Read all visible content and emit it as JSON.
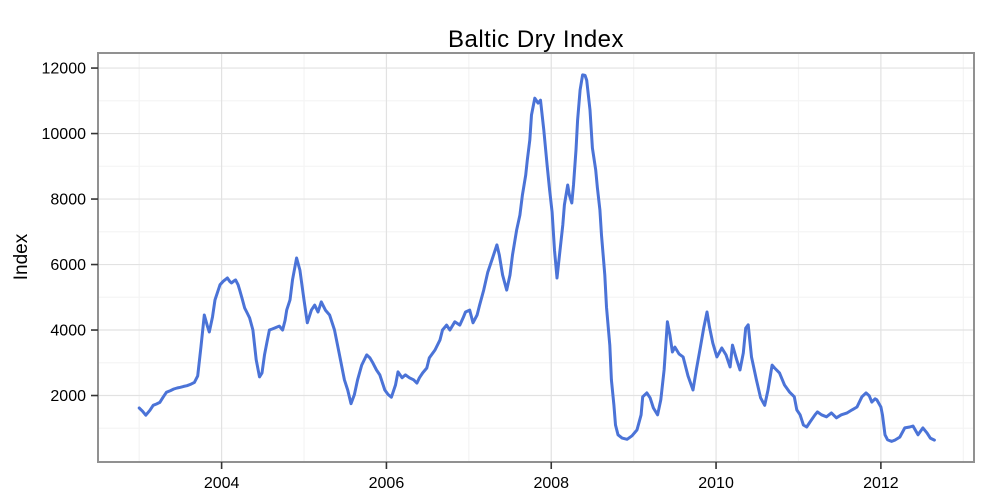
{
  "chart_data": {
    "type": "line",
    "title": "Baltic Dry Index",
    "xlabel": "",
    "ylabel": "Index",
    "legend": "none",
    "grid": true,
    "x_domain": [
      2002.5,
      2013.13
    ],
    "y_domain": [
      -30,
      12460
    ],
    "x_ticks": {
      "major": [
        2004,
        2006,
        2008,
        2010,
        2012
      ],
      "minor": [
        2003,
        2005,
        2007,
        2009,
        2011,
        2013
      ],
      "labels": [
        "2004",
        "2006",
        "2008",
        "2010",
        "2012"
      ]
    },
    "y_ticks": {
      "major": [
        2000,
        4000,
        6000,
        8000,
        10000,
        12000
      ],
      "minor": [
        1000,
        3000,
        5000,
        7000,
        9000,
        11000
      ],
      "labels": [
        "2000",
        "4000",
        "6000",
        "8000",
        "10000",
        "12000"
      ]
    },
    "colors": {
      "line": "#4B73D7",
      "grid_major": "#e2e2e2",
      "grid_minor": "#f4f4f4",
      "border": "#919191",
      "tick": "#333333",
      "text": "#000000",
      "plot_bg": "#ffffff"
    },
    "series": [
      {
        "name": "Baltic Dry Index",
        "color": "#4B73D7",
        "points": [
          [
            2003.0,
            1620
          ],
          [
            2003.04,
            1520
          ],
          [
            2003.08,
            1400
          ],
          [
            2003.13,
            1550
          ],
          [
            2003.17,
            1700
          ],
          [
            2003.21,
            1740
          ],
          [
            2003.25,
            1790
          ],
          [
            2003.29,
            1950
          ],
          [
            2003.33,
            2100
          ],
          [
            2003.38,
            2150
          ],
          [
            2003.42,
            2200
          ],
          [
            2003.46,
            2230
          ],
          [
            2003.5,
            2250
          ],
          [
            2003.54,
            2280
          ],
          [
            2003.58,
            2300
          ],
          [
            2003.63,
            2350
          ],
          [
            2003.67,
            2400
          ],
          [
            2003.71,
            2600
          ],
          [
            2003.75,
            3500
          ],
          [
            2003.79,
            4460
          ],
          [
            2003.83,
            4100
          ],
          [
            2003.85,
            3940
          ],
          [
            2003.89,
            4400
          ],
          [
            2003.92,
            4920
          ],
          [
            2003.98,
            5380
          ],
          [
            2004.02,
            5490
          ],
          [
            2004.04,
            5530
          ],
          [
            2004.07,
            5590
          ],
          [
            2004.1,
            5480
          ],
          [
            2004.12,
            5440
          ],
          [
            2004.15,
            5500
          ],
          [
            2004.17,
            5530
          ],
          [
            2004.2,
            5380
          ],
          [
            2004.22,
            5220
          ],
          [
            2004.25,
            4950
          ],
          [
            2004.28,
            4670
          ],
          [
            2004.31,
            4520
          ],
          [
            2004.34,
            4370
          ],
          [
            2004.38,
            4000
          ],
          [
            2004.42,
            3090
          ],
          [
            2004.46,
            2570
          ],
          [
            2004.49,
            2690
          ],
          [
            2004.52,
            3240
          ],
          [
            2004.55,
            3620
          ],
          [
            2004.58,
            4000
          ],
          [
            2004.61,
            4030
          ],
          [
            2004.64,
            4060
          ],
          [
            2004.67,
            4090
          ],
          [
            2004.7,
            4120
          ],
          [
            2004.74,
            4000
          ],
          [
            2004.77,
            4300
          ],
          [
            2004.79,
            4610
          ],
          [
            2004.83,
            4920
          ],
          [
            2004.86,
            5530
          ],
          [
            2004.91,
            6200
          ],
          [
            2004.95,
            5830
          ],
          [
            2005.0,
            4920
          ],
          [
            2005.04,
            4220
          ],
          [
            2005.09,
            4610
          ],
          [
            2005.13,
            4760
          ],
          [
            2005.17,
            4550
          ],
          [
            2005.21,
            4860
          ],
          [
            2005.26,
            4610
          ],
          [
            2005.31,
            4460
          ],
          [
            2005.37,
            4000
          ],
          [
            2005.43,
            3240
          ],
          [
            2005.49,
            2480
          ],
          [
            2005.53,
            2170
          ],
          [
            2005.57,
            1750
          ],
          [
            2005.61,
            2020
          ],
          [
            2005.65,
            2480
          ],
          [
            2005.7,
            2930
          ],
          [
            2005.76,
            3240
          ],
          [
            2005.8,
            3150
          ],
          [
            2005.83,
            3020
          ],
          [
            2005.88,
            2780
          ],
          [
            2005.92,
            2630
          ],
          [
            2005.98,
            2170
          ],
          [
            2006.02,
            2030
          ],
          [
            2006.06,
            1950
          ],
          [
            2006.11,
            2320
          ],
          [
            2006.14,
            2720
          ],
          [
            2006.19,
            2540
          ],
          [
            2006.23,
            2630
          ],
          [
            2006.28,
            2540
          ],
          [
            2006.33,
            2480
          ],
          [
            2006.37,
            2380
          ],
          [
            2006.4,
            2540
          ],
          [
            2006.44,
            2690
          ],
          [
            2006.49,
            2840
          ],
          [
            2006.52,
            3150
          ],
          [
            2006.59,
            3390
          ],
          [
            2006.65,
            3700
          ],
          [
            2006.68,
            4000
          ],
          [
            2006.73,
            4150
          ],
          [
            2006.77,
            4000
          ],
          [
            2006.83,
            4250
          ],
          [
            2006.89,
            4150
          ],
          [
            2006.93,
            4370
          ],
          [
            2006.96,
            4550
          ],
          [
            2007.01,
            4610
          ],
          [
            2007.05,
            4220
          ],
          [
            2007.1,
            4460
          ],
          [
            2007.13,
            4760
          ],
          [
            2007.18,
            5220
          ],
          [
            2007.23,
            5770
          ],
          [
            2007.28,
            6140
          ],
          [
            2007.34,
            6600
          ],
          [
            2007.37,
            6290
          ],
          [
            2007.41,
            5680
          ],
          [
            2007.46,
            5220
          ],
          [
            2007.5,
            5680
          ],
          [
            2007.53,
            6290
          ],
          [
            2007.58,
            7050
          ],
          [
            2007.62,
            7510
          ],
          [
            2007.65,
            8120
          ],
          [
            2007.69,
            8730
          ],
          [
            2007.71,
            9190
          ],
          [
            2007.74,
            9800
          ],
          [
            2007.76,
            10570
          ],
          [
            2007.8,
            11080
          ],
          [
            2007.84,
            10930
          ],
          [
            2007.87,
            11020
          ],
          [
            2007.91,
            10110
          ],
          [
            2007.95,
            9040
          ],
          [
            2007.98,
            8280
          ],
          [
            2008.01,
            7600
          ],
          [
            2008.04,
            6440
          ],
          [
            2008.07,
            5590
          ],
          [
            2008.1,
            6290
          ],
          [
            2008.14,
            7210
          ],
          [
            2008.16,
            7820
          ],
          [
            2008.2,
            8430
          ],
          [
            2008.22,
            8120
          ],
          [
            2008.25,
            7880
          ],
          [
            2008.27,
            8430
          ],
          [
            2008.3,
            9500
          ],
          [
            2008.32,
            10410
          ],
          [
            2008.35,
            11330
          ],
          [
            2008.38,
            11790
          ],
          [
            2008.41,
            11780
          ],
          [
            2008.43,
            11630
          ],
          [
            2008.47,
            10720
          ],
          [
            2008.5,
            9560
          ],
          [
            2008.54,
            8890
          ],
          [
            2008.56,
            8340
          ],
          [
            2008.59,
            7670
          ],
          [
            2008.61,
            6900
          ],
          [
            2008.65,
            5680
          ],
          [
            2008.67,
            4700
          ],
          [
            2008.71,
            3540
          ],
          [
            2008.73,
            2480
          ],
          [
            2008.76,
            1710
          ],
          [
            2008.78,
            1100
          ],
          [
            2008.81,
            800
          ],
          [
            2008.86,
            700
          ],
          [
            2008.92,
            663
          ],
          [
            2008.98,
            770
          ],
          [
            2009.04,
            950
          ],
          [
            2009.09,
            1410
          ],
          [
            2009.11,
            1960
          ],
          [
            2009.16,
            2080
          ],
          [
            2009.2,
            1930
          ],
          [
            2009.24,
            1620
          ],
          [
            2009.29,
            1410
          ],
          [
            2009.33,
            1870
          ],
          [
            2009.37,
            2780
          ],
          [
            2009.39,
            3540
          ],
          [
            2009.41,
            4250
          ],
          [
            2009.44,
            3850
          ],
          [
            2009.47,
            3330
          ],
          [
            2009.5,
            3480
          ],
          [
            2009.55,
            3270
          ],
          [
            2009.6,
            3180
          ],
          [
            2009.66,
            2600
          ],
          [
            2009.72,
            2170
          ],
          [
            2009.76,
            2780
          ],
          [
            2009.81,
            3480
          ],
          [
            2009.85,
            4060
          ],
          [
            2009.89,
            4550
          ],
          [
            2009.92,
            4090
          ],
          [
            2009.96,
            3600
          ],
          [
            2010.01,
            3180
          ],
          [
            2010.07,
            3450
          ],
          [
            2010.12,
            3240
          ],
          [
            2010.17,
            2870
          ],
          [
            2010.2,
            3540
          ],
          [
            2010.25,
            3090
          ],
          [
            2010.29,
            2780
          ],
          [
            2010.33,
            3300
          ],
          [
            2010.36,
            4060
          ],
          [
            2010.39,
            4160
          ],
          [
            2010.43,
            3180
          ],
          [
            2010.49,
            2480
          ],
          [
            2010.54,
            1930
          ],
          [
            2010.59,
            1700
          ],
          [
            2010.63,
            2170
          ],
          [
            2010.68,
            2930
          ],
          [
            2010.71,
            2840
          ],
          [
            2010.77,
            2690
          ],
          [
            2010.83,
            2320
          ],
          [
            2010.89,
            2110
          ],
          [
            2010.95,
            1960
          ],
          [
            2010.98,
            1560
          ],
          [
            2011.02,
            1410
          ],
          [
            2011.06,
            1100
          ],
          [
            2011.1,
            1040
          ],
          [
            2011.14,
            1190
          ],
          [
            2011.2,
            1410
          ],
          [
            2011.23,
            1500
          ],
          [
            2011.28,
            1410
          ],
          [
            2011.34,
            1350
          ],
          [
            2011.4,
            1470
          ],
          [
            2011.46,
            1320
          ],
          [
            2011.52,
            1410
          ],
          [
            2011.59,
            1470
          ],
          [
            2011.65,
            1560
          ],
          [
            2011.71,
            1650
          ],
          [
            2011.77,
            1960
          ],
          [
            2011.82,
            2080
          ],
          [
            2011.86,
            1990
          ],
          [
            2011.89,
            1800
          ],
          [
            2011.93,
            1900
          ],
          [
            2011.95,
            1870
          ],
          [
            2012.0,
            1650
          ],
          [
            2012.02,
            1400
          ],
          [
            2012.05,
            800
          ],
          [
            2012.08,
            650
          ],
          [
            2012.13,
            600
          ],
          [
            2012.17,
            640
          ],
          [
            2012.23,
            730
          ],
          [
            2012.29,
            1010
          ],
          [
            2012.35,
            1040
          ],
          [
            2012.39,
            1070
          ],
          [
            2012.45,
            800
          ],
          [
            2012.51,
            1010
          ],
          [
            2012.56,
            860
          ],
          [
            2012.6,
            700
          ],
          [
            2012.65,
            640
          ]
        ]
      }
    ]
  }
}
